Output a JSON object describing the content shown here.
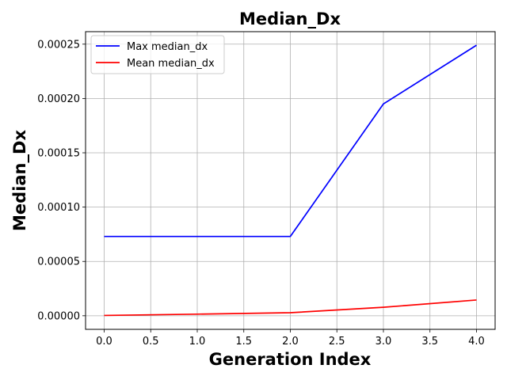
{
  "chart_data": {
    "type": "line",
    "title": "Median_Dx",
    "xlabel": "Generation Index",
    "ylabel": "Median_Dx",
    "x": [
      0,
      1,
      2,
      3,
      4
    ],
    "series": [
      {
        "name": "Max median_dx",
        "color": "#0000ff",
        "values": [
          7.3e-05,
          7.3e-05,
          7.3e-05,
          0.000195,
          0.000249
        ]
      },
      {
        "name": "Mean median_dx",
        "color": "#ff0000",
        "values": [
          3e-07,
          1.5e-06,
          2.8e-06,
          7.8e-06,
          1.45e-05
        ]
      }
    ],
    "xlim": [
      -0.2,
      4.2
    ],
    "ylim": [
      -1.25e-05,
      0.0002615
    ],
    "xticks": [
      "0.0",
      "0.5",
      "1.0",
      "1.5",
      "2.0",
      "2.5",
      "3.0",
      "3.5",
      "4.0"
    ],
    "xtick_values": [
      0,
      0.5,
      1,
      1.5,
      2,
      2.5,
      3,
      3.5,
      4
    ],
    "yticks": [
      "0.00000",
      "0.00005",
      "0.00010",
      "0.00015",
      "0.00020",
      "0.00025"
    ],
    "ytick_values": [
      0,
      5e-05,
      0.0001,
      0.00015,
      0.0002,
      0.00025
    ],
    "grid": true,
    "legend_position": "top-left"
  }
}
